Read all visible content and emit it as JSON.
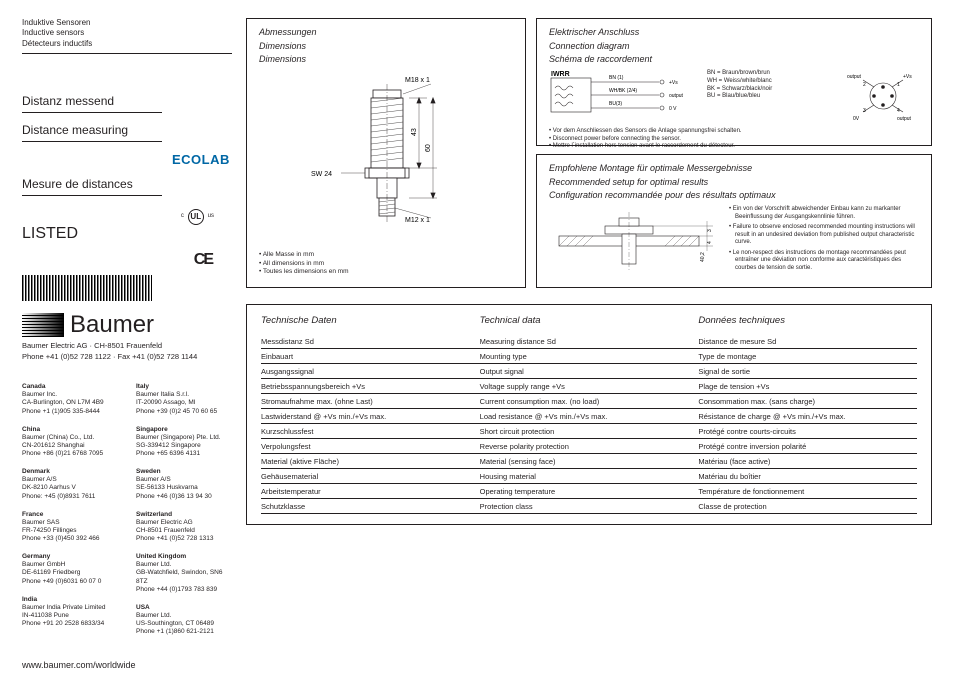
{
  "header": {
    "de": "Induktive Sensoren",
    "en": "Inductive sensors",
    "fr": "Détecteurs inductifs"
  },
  "titles": {
    "de": "Distanz messend",
    "en": "Distance measuring",
    "fr": "Mesure de distances"
  },
  "brand": {
    "ecolab": "ECOLAB",
    "ce": "CE",
    "ul": "UL",
    "listed": "LISTED",
    "c": "c",
    "us": "us",
    "logo": "Baumer",
    "company": "Baumer Electric AG · CH-8501 Frauenfeld",
    "phone": "Phone +41 (0)52 728 1122 · Fax +41 (0)52 728 1144"
  },
  "offices_left": [
    {
      "country": "Canada",
      "l1": "Baumer Inc.",
      "l2": "CA-Burlington, ON L7M 4B9",
      "l3": "Phone +1 (1)905 335-8444"
    },
    {
      "country": "China",
      "l1": "Baumer (China) Co., Ltd.",
      "l2": "CN-201612 Shanghai",
      "l3": "Phone +86 (0)21 6768 7095"
    },
    {
      "country": "Denmark",
      "l1": "Baumer A/S",
      "l2": "DK-8210 Aarhus V",
      "l3": "Phone: +45 (0)8931 7611"
    },
    {
      "country": "France",
      "l1": "Baumer SAS",
      "l2": "FR-74250 Fillinges",
      "l3": "Phone +33 (0)450 392 466"
    },
    {
      "country": "Germany",
      "l1": "Baumer GmbH",
      "l2": "DE-61169 Friedberg",
      "l3": "Phone +49 (0)6031 60 07 0"
    },
    {
      "country": "India",
      "l1": "Baumer India Private Limited",
      "l2": "IN-411038 Pune",
      "l3": "Phone +91 20 2528 6833/34"
    }
  ],
  "offices_right": [
    {
      "country": "Italy",
      "l1": "Baumer Italia S.r.l.",
      "l2": "IT-20090 Assago, MI",
      "l3": "Phone +39 (0)2 45 70 60 65"
    },
    {
      "country": "Singapore",
      "l1": "Baumer (Singapore) Pte. Ltd.",
      "l2": "SG-339412 Singapore",
      "l3": "Phone +65 6396 4131"
    },
    {
      "country": "Sweden",
      "l1": "Baumer A/S",
      "l2": "SE-56133 Huskvarna",
      "l3": "Phone +46 (0)36 13 94 30"
    },
    {
      "country": "Switzerland",
      "l1": "Baumer Electric AG",
      "l2": "CH-8501 Frauenfeld",
      "l3": "Phone +41 (0)52 728 1313"
    },
    {
      "country": "United Kingdom",
      "l1": "Baumer Ltd.",
      "l2": "GB-Watchfield, Swindon, SN6 8TZ",
      "l3": "Phone +44 (0)1793 783 839"
    },
    {
      "country": "USA",
      "l1": "Baumer Ltd.",
      "l2": "US-Southington, CT 06489",
      "l3": "Phone +1 (1)860 621-2121"
    }
  ],
  "url": "www.baumer.com/worldwide",
  "dimensions": {
    "title_de": "Abmessungen",
    "title_en": "Dimensions",
    "title_fr": "Dimensions",
    "thread_top": "M18 x 1",
    "thread_bot": "M12 x 1",
    "sw": "SW 24",
    "len_body": "43",
    "len_total": "60",
    "notes_de": "• Alle Masse in mm",
    "notes_en": "• All dimensions in mm",
    "notes_fr": "• Toutes les dimensions en mm"
  },
  "connection": {
    "title_de": "Elektrischer Anschluss",
    "title_en": "Connection diagram",
    "title_fr": "Schéma de raccordement",
    "block_label": "IWRR",
    "wires": {
      "bn": "BN (1)",
      "bn_sig": "+Vs",
      "wb": "WH/BK (2/4)",
      "wb_sig": "output",
      "bu": "BU(3)",
      "bu_sig": "0 V"
    },
    "legend": {
      "bn": "BN = Braun/brown/brun",
      "wh": "WH = Weiss/white/blanc",
      "bk": "BK = Schwarz/black/noir",
      "bu": "BU = Blau/blue/bleu"
    },
    "pinout": {
      "p1": "+Vs",
      "p1n": "1",
      "p2": "output",
      "p2n": "2",
      "p3": "0V",
      "p3n": "3",
      "p4": "output",
      "p4n": "4"
    },
    "notes_de": "Vor dem Anschliessen des Sensors die Anlage spannungsfrei schalten.",
    "notes_en": "Disconnect power before connecting the sensor.",
    "notes_fr": "Mettre l´installation hors tension avant le raccordement du détecteur."
  },
  "mounting": {
    "title_de": "Empfohlene Montage für optimale Messergebnisse",
    "title_en": "Recommended setup for optimal results",
    "title_fr": "Configuration recommandée pour des résultats optimaux",
    "dim_a": "4",
    "dim_b": "40,2",
    "dim_c": "3",
    "notes_de": "Ein von der Vorschrift abweichender Einbau kann zu markanter Beeinflussung der Ausgangskennlinie führen.",
    "notes_en": "Failure to observe enclosed recommended mounting instructions will result in an undesired deviation from published output characteristic curve.",
    "notes_fr": "Le non-respect  des instructions de montage recommandées peut entraîner une déviation non conforme aux caractéristiques des courbes de tension de sortie."
  },
  "tech": {
    "title_de": "Technische Daten",
    "title_en": "Technical data",
    "title_fr": "Données techniques",
    "rows": [
      {
        "de": "Messdistanz Sd",
        "en": "Measuring distance Sd",
        "fr": "Distance de mesure Sd"
      },
      {
        "de": "Einbauart",
        "en": "Mounting type",
        "fr": "Type de montage"
      },
      {
        "de": "Ausgangssignal",
        "en": "Output signal",
        "fr": "Signal de sortie"
      },
      {
        "de": "Betriebsspannungsbereich +Vs",
        "en": "Voltage supply range +Vs",
        "fr": "Plage de tension +Vs"
      },
      {
        "de": "Stromaufnahme max. (ohne Last)",
        "en": "Current consumption max. (no load)",
        "fr": "Consommation max. (sans charge)"
      },
      {
        "de": "Lastwiderstand @ +Vs min./+Vs max.",
        "en": "Load resistance @ +Vs min./+Vs max.",
        "fr": "Résistance de charge @ +Vs min./+Vs max."
      },
      {
        "de": "Kurzschlussfest",
        "en": "Short circuit protection",
        "fr": "Protégé contre courts-circuits"
      },
      {
        "de": "Verpolungsfest",
        "en": "Reverse polarity protection",
        "fr": "Protégé contre inversion polarité"
      },
      {
        "de": "Material (aktive Fläche)",
        "en": "Material (sensing face)",
        "fr": "Matériau (face active)"
      },
      {
        "de": "Gehäusematerial",
        "en": "Housing material",
        "fr": "Matériau du boîtier"
      },
      {
        "de": "Arbeitstemperatur",
        "en": "Operating temperature",
        "fr": "Température de fonctionnement"
      },
      {
        "de": "Schutzklasse",
        "en": "Protection class",
        "fr": "Classe de protection"
      }
    ]
  },
  "style": {
    "text_color": "#231f20",
    "accent_color": "#0067a5",
    "border_color": "#231f20"
  }
}
